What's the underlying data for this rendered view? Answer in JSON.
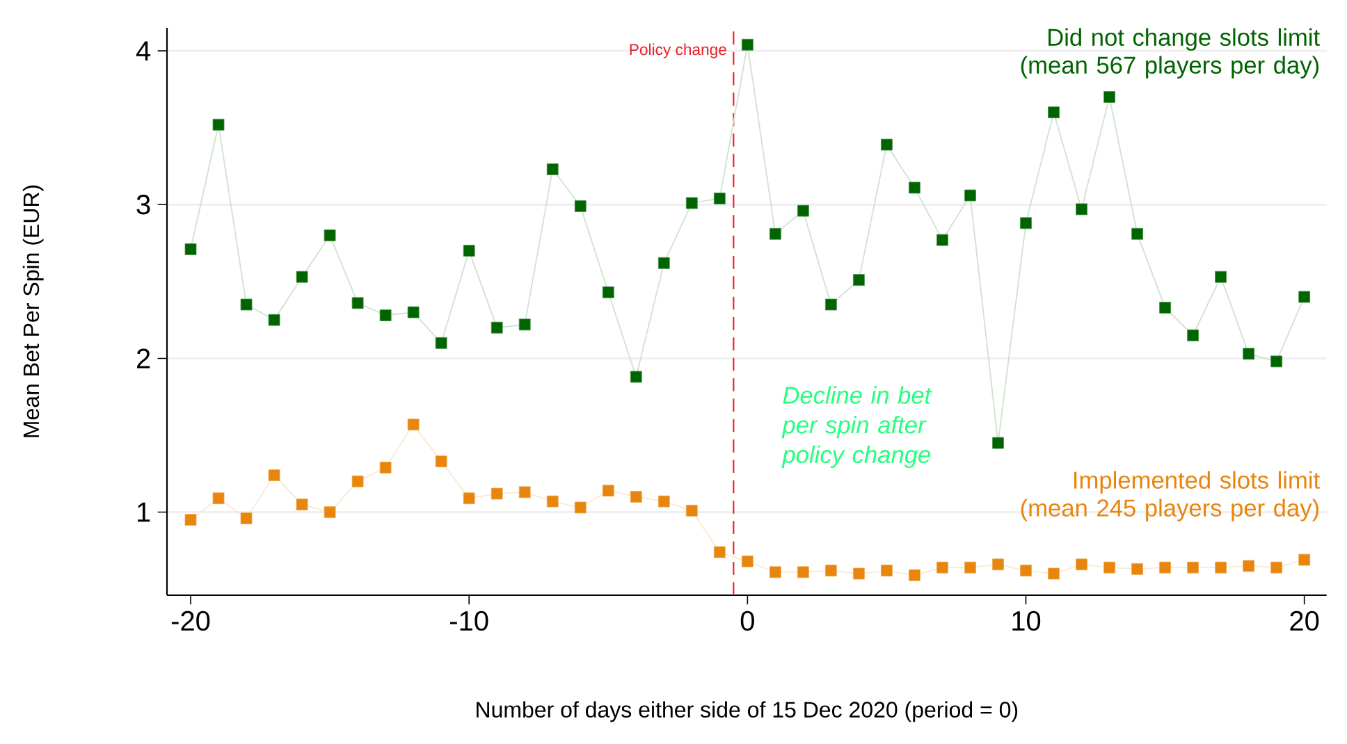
{
  "chart_data": {
    "type": "line",
    "xlabel": "Number of days either side of 15 Dec 2020 (period = 0)",
    "ylabel": "Mean Bet Per Spin (EUR)",
    "x": [
      -20,
      -19,
      -18,
      -17,
      -16,
      -15,
      -14,
      -13,
      -12,
      -11,
      -10,
      -9,
      -8,
      -7,
      -6,
      -5,
      -4,
      -3,
      -2,
      -1,
      0,
      1,
      2,
      3,
      4,
      5,
      6,
      7,
      8,
      9,
      10,
      11,
      12,
      13,
      14,
      15,
      16,
      17,
      18,
      19,
      20
    ],
    "series": [
      {
        "name": "Did not change slots limit (mean 567 players per day)",
        "color": "#006400",
        "values": [
          2.71,
          3.52,
          2.35,
          2.25,
          2.53,
          2.8,
          2.36,
          2.28,
          2.3,
          2.1,
          2.7,
          2.2,
          2.22,
          3.23,
          2.99,
          2.43,
          1.88,
          2.62,
          3.01,
          3.04,
          4.04,
          2.81,
          2.96,
          2.35,
          2.51,
          3.39,
          3.11,
          2.77,
          3.06,
          1.45,
          2.88,
          3.6,
          2.97,
          3.7,
          2.81,
          2.33,
          2.15,
          2.53,
          2.03,
          1.98,
          2.4
        ]
      },
      {
        "name": "Implemented slots limit (mean 245 players per day)",
        "color": "#e8850c",
        "values": [
          0.95,
          1.09,
          0.96,
          1.24,
          1.05,
          1.0,
          1.2,
          1.29,
          1.57,
          1.33,
          1.09,
          1.12,
          1.13,
          1.07,
          1.03,
          1.14,
          1.1,
          1.07,
          1.01,
          0.74,
          0.68,
          0.61,
          0.61,
          0.62,
          0.6,
          0.62,
          0.59,
          0.64,
          0.64,
          0.66,
          0.62,
          0.6,
          0.66,
          0.64,
          0.63,
          0.64,
          0.64,
          0.64,
          0.65,
          0.64,
          0.69
        ]
      }
    ],
    "xlim": [
      -20.85,
      20.8
    ],
    "ylim": [
      0.46,
      4.15
    ],
    "xticks": [
      -20,
      -10,
      0,
      10,
      20
    ],
    "yticks": [
      1,
      2,
      3,
      4
    ],
    "grid": "y",
    "marker": "square",
    "ref_lines": [
      {
        "axis": "x",
        "value": -0.5,
        "label": "Policy change",
        "color": "#e8202a",
        "line_style": "dashed"
      }
    ],
    "annotations": [
      "Decline in bet per spin after policy change"
    ]
  }
}
